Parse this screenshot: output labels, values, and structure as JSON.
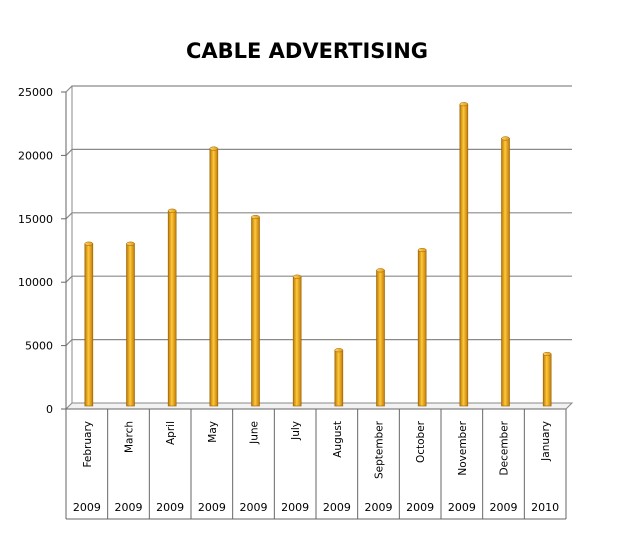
{
  "chart_data": {
    "type": "bar",
    "title": "CABLE ADVERTISING",
    "xlabel": "",
    "ylabel": "",
    "ylim": [
      0,
      25000
    ],
    "yticks": [
      "0",
      "5000",
      "10000",
      "15000",
      "20000",
      "25000"
    ],
    "grid": true,
    "categories": [
      "February",
      "March",
      "April",
      "May",
      "June",
      "July",
      "August",
      "September",
      "October",
      "November",
      "December",
      "January"
    ],
    "years": [
      "2009",
      "2009",
      "2009",
      "2009",
      "2009",
      "2009",
      "2009",
      "2009",
      "2009",
      "2009",
      "2009",
      "2010"
    ],
    "values": [
      12800,
      12800,
      15400,
      20300,
      14900,
      10200,
      4400,
      10700,
      12300,
      23800,
      21100,
      4100
    ],
    "bar_color": "#F0A81C"
  }
}
